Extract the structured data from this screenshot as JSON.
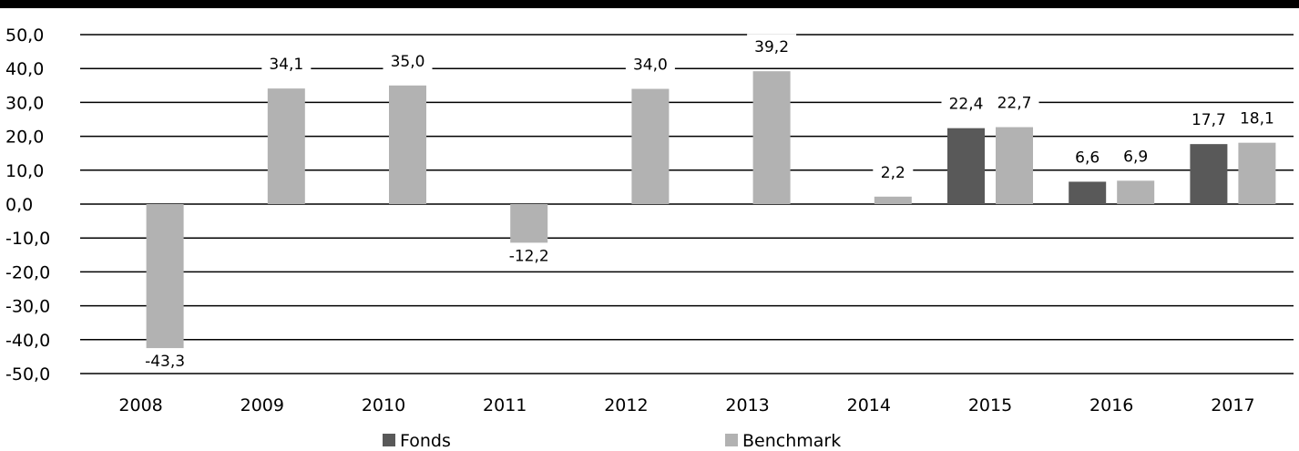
{
  "chart_data": {
    "type": "bar",
    "categories": [
      "2008",
      "2009",
      "2010",
      "2011",
      "2012",
      "2013",
      "2014",
      "2015",
      "2016",
      "2017"
    ],
    "series": [
      {
        "name": "Fonds",
        "color": "#595959",
        "values": [
          null,
          null,
          null,
          null,
          null,
          null,
          null,
          22.4,
          6.6,
          17.7
        ]
      },
      {
        "name": "Benchmark",
        "color": "#b2b2b2",
        "values": [
          -43.3,
          34.1,
          35.0,
          -12.2,
          34.0,
          39.2,
          2.2,
          22.7,
          6.9,
          18.1
        ]
      }
    ],
    "data_labels": {
      "Fonds": [
        "",
        "",
        "",
        "",
        "",
        "",
        "",
        "22,4",
        "6,6",
        "17,7"
      ],
      "Benchmark": [
        "-43,3",
        "34,1",
        "35,0",
        "-12,2",
        "34,0",
        "39,2",
        "2,2",
        "22,7",
        "6,9",
        "18,1"
      ]
    },
    "y_tick_labels": [
      "50,0",
      "40,0",
      "30,0",
      "20,0",
      "10,0",
      "0,0",
      "-10,0",
      "-20,0",
      "-30,0",
      "-40,0",
      "-50,0"
    ],
    "ylim": [
      -50,
      50
    ],
    "ystep": 10,
    "title": "",
    "xlabel": "",
    "ylabel": "",
    "grid": true,
    "legend_position": "bottom"
  }
}
